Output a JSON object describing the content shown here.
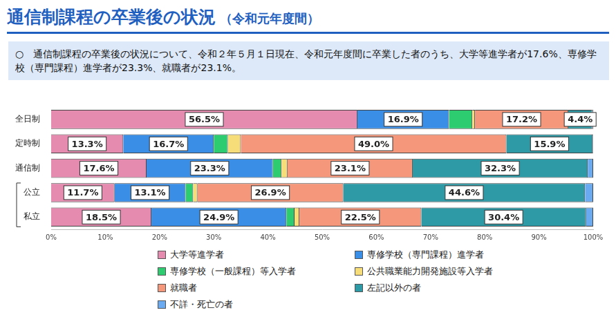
{
  "chart_data": {
    "type": "bar",
    "title": "通信制課程の卒業後の状況",
    "subtitle": "（令和元年度間）",
    "annotations": [
      "○　通信制課程の卒業後の状況について、令和２年５月１日現在、令和元年度間に卒業した者のうち、大学等進学者が17.6%、専修学校（専門課程）進学者が23.3%、就職者が23.1%。"
    ],
    "orientation": "horizontal",
    "stacked": true,
    "data_labels": true,
    "grid": false,
    "legend": "bottom",
    "categories": [
      "全日制",
      "定時制",
      "通信制",
      "公立",
      "私立"
    ],
    "xlim": [
      0,
      100
    ],
    "xticks": [
      {
        "value": 0,
        "label": "0%"
      },
      {
        "value": 10,
        "label": "10%"
      },
      {
        "value": 20,
        "label": "20%"
      },
      {
        "value": 30,
        "label": "30%"
      },
      {
        "value": 40,
        "label": "40%"
      },
      {
        "value": 50,
        "label": "50%"
      },
      {
        "value": 60,
        "label": "60%"
      },
      {
        "value": 70,
        "label": "70%"
      },
      {
        "value": 80,
        "label": "80%"
      },
      {
        "value": 90,
        "label": "90%"
      },
      {
        "value": 100,
        "label": "100%"
      }
    ],
    "series": [
      {
        "name": "大学等進学者",
        "color": "#e58bb0",
        "values": [
          56.5,
          13.3,
          17.6,
          11.7,
          18.5
        ],
        "value_labels": [
          "56.5%",
          "13.3%",
          "17.6%",
          "11.7%",
          "18.5%"
        ]
      },
      {
        "name": "専修学校（専門課程）進学者",
        "color": "#3a8ee6",
        "values": [
          16.9,
          16.7,
          23.3,
          13.1,
          24.9
        ],
        "value_labels": [
          "16.9%",
          "16.7%",
          "23.3%",
          "13.1%",
          "24.9%"
        ]
      },
      {
        "name": "専修学校（一般課程）等入学者",
        "color": "#2ecc71",
        "values": [
          4.3,
          2.6,
          1.6,
          1.4,
          1.5
        ]
      },
      {
        "name": "公共職業能力開発施設等入学者",
        "color": "#f7dc7a",
        "values": [
          0.5,
          2.4,
          1.1,
          0.8,
          0.9
        ]
      },
      {
        "name": "就職者",
        "color": "#f4977a",
        "values": [
          17.2,
          49.0,
          23.1,
          26.9,
          22.5
        ],
        "value_labels": [
          "17.2%",
          "49.0%",
          "23.1%",
          "26.9%",
          "22.5%"
        ]
      },
      {
        "name": "左記以外の者",
        "color": "#2e9aa6",
        "values": [
          4.4,
          15.9,
          32.3,
          44.6,
          30.4
        ],
        "value_labels": [
          "4.4%",
          "15.9%",
          "32.3%",
          "44.6%",
          "30.4%"
        ]
      },
      {
        "name": "不詳・死亡の者",
        "color": "#6aaaf0",
        "values": [
          0.2,
          0.1,
          1.0,
          1.5,
          1.3
        ]
      }
    ]
  }
}
